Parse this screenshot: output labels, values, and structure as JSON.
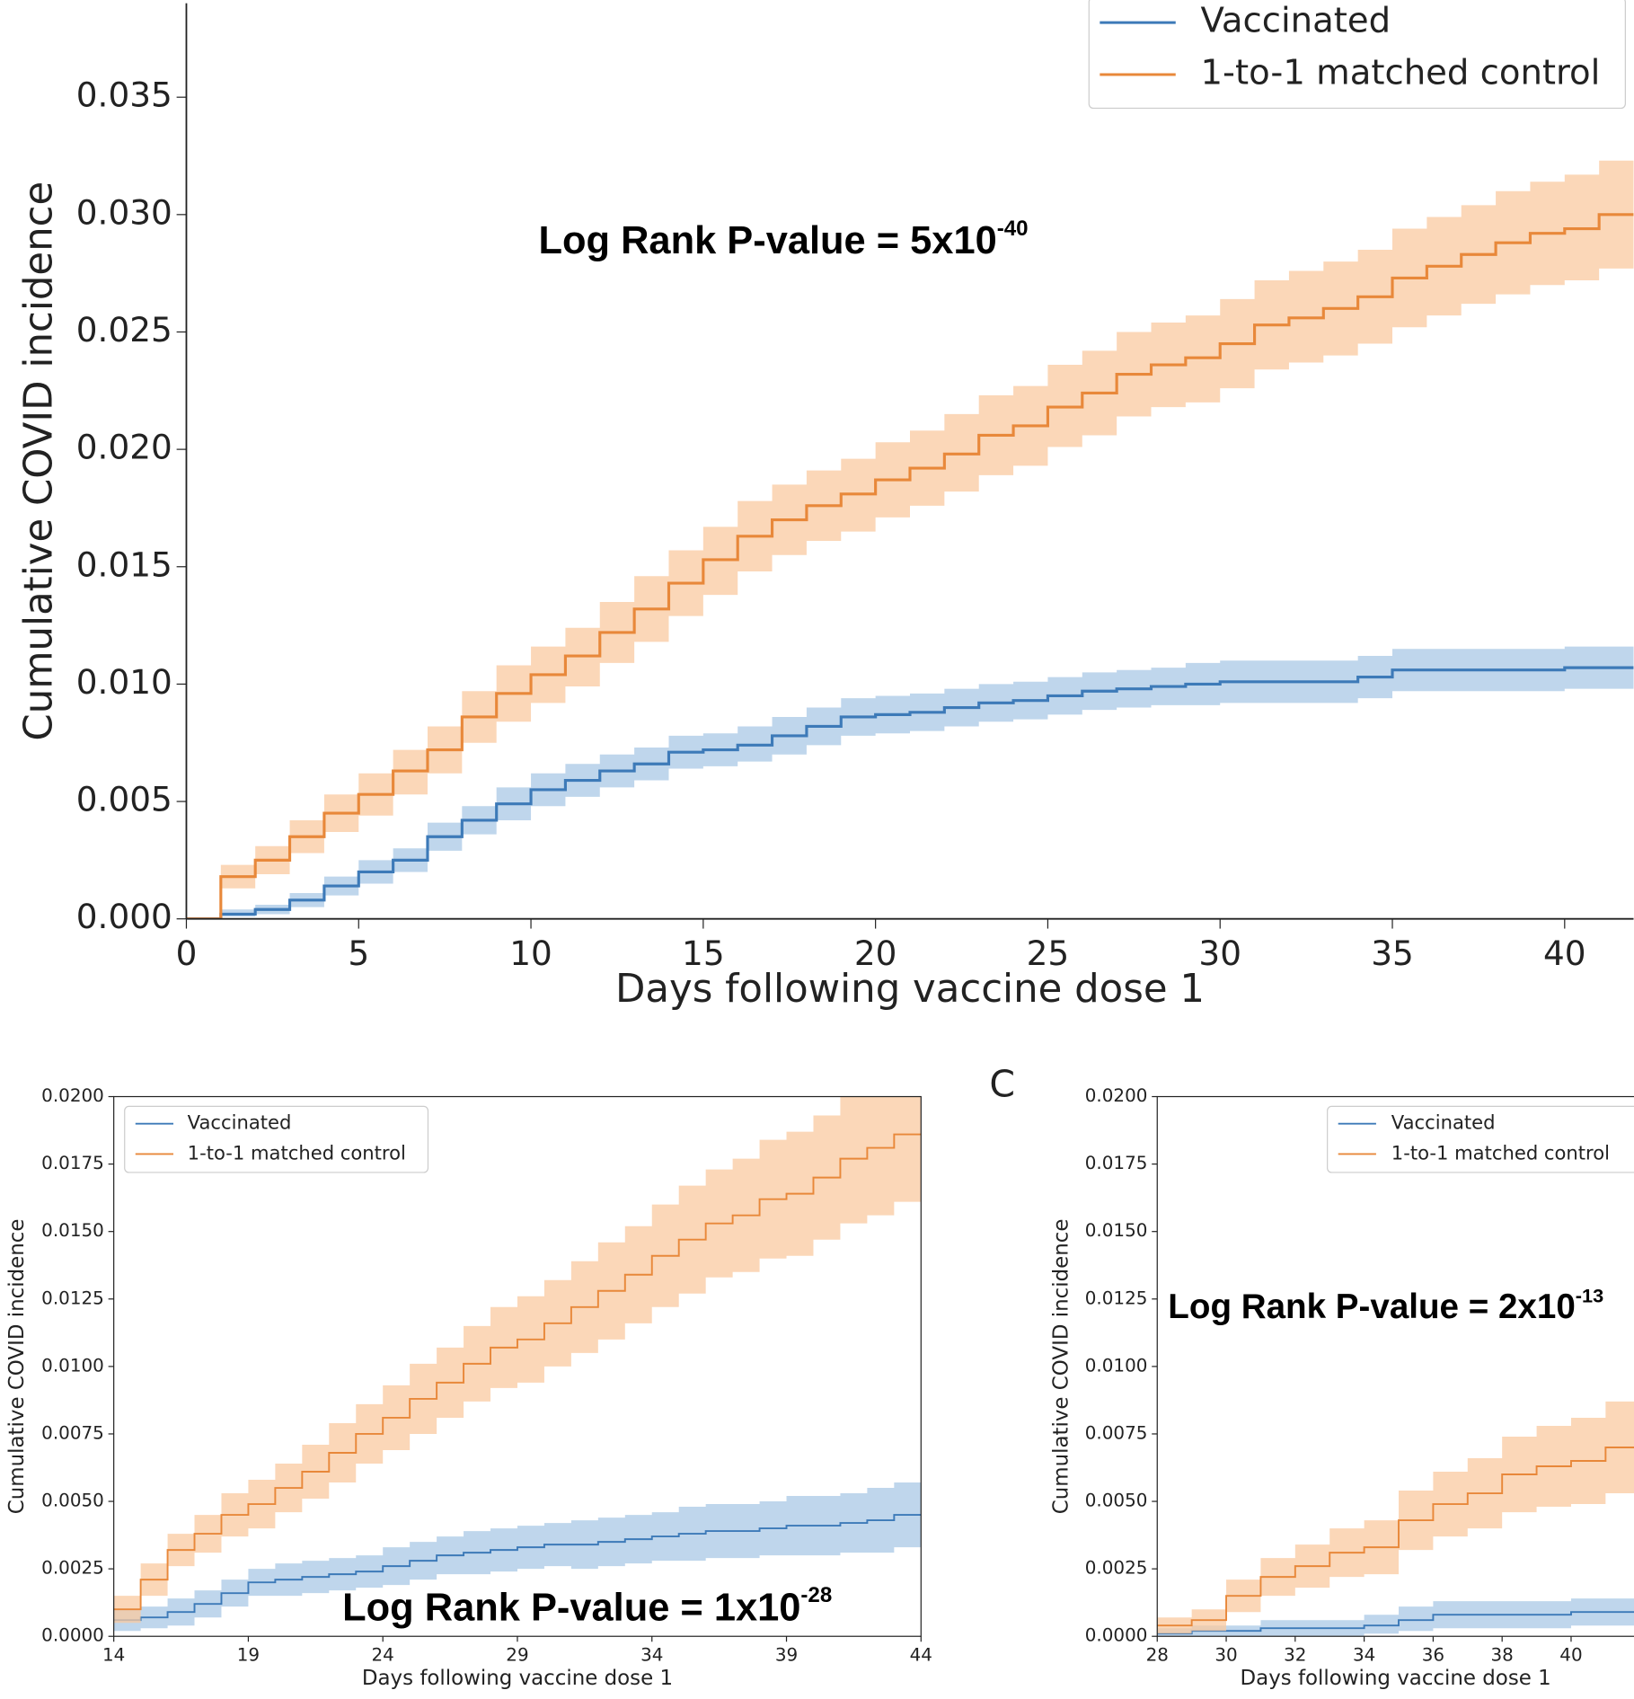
{
  "chart_data": [
    {
      "type": "step",
      "panel": "top",
      "annotation": {
        "text": "Log Rank P-value = 5x10",
        "sup": "-40"
      },
      "x_label": "Days following vaccine dose 1",
      "y_label": "Cumulative COVID incidence",
      "x": [
        0,
        1,
        2,
        3,
        4,
        5,
        6,
        7,
        8,
        9,
        10,
        11,
        12,
        13,
        14,
        15,
        16,
        17,
        18,
        19,
        20,
        21,
        22,
        23,
        24,
        25,
        26,
        27,
        28,
        29,
        30,
        31,
        32,
        33,
        34,
        35,
        36,
        37,
        38,
        39,
        40,
        41,
        42
      ],
      "series": [
        {
          "name": "Vaccinated",
          "color": "#3d7ab8",
          "band_color": "#a9c8e6",
          "values": [
            0,
            0.0002,
            0.0004,
            0.0008,
            0.0014,
            0.002,
            0.0025,
            0.0035,
            0.0042,
            0.0049,
            0.0055,
            0.0059,
            0.0063,
            0.0066,
            0.0071,
            0.0072,
            0.0074,
            0.0078,
            0.0082,
            0.0086,
            0.0087,
            0.0088,
            0.009,
            0.0092,
            0.0093,
            0.0095,
            0.0097,
            0.0098,
            0.0099,
            0.01,
            0.0101,
            0.0101,
            0.0101,
            0.0101,
            0.0103,
            0.0106,
            0.0106,
            0.0106,
            0.0106,
            0.0106,
            0.0107,
            0.0107,
            0.0107
          ],
          "lower": [
            0,
            0.0001,
            0.0002,
            0.0005,
            0.001,
            0.0015,
            0.002,
            0.0029,
            0.0036,
            0.0042,
            0.0048,
            0.0052,
            0.0056,
            0.0059,
            0.0064,
            0.0065,
            0.0067,
            0.007,
            0.0074,
            0.0078,
            0.0079,
            0.008,
            0.0082,
            0.0084,
            0.0085,
            0.0087,
            0.0089,
            0.009,
            0.0091,
            0.0091,
            0.0092,
            0.0092,
            0.0092,
            0.0092,
            0.0094,
            0.0097,
            0.0097,
            0.0097,
            0.0097,
            0.0097,
            0.0098,
            0.0098,
            0.0098
          ],
          "upper": [
            0,
            0.0004,
            0.0006,
            0.0011,
            0.0018,
            0.0025,
            0.003,
            0.0041,
            0.0048,
            0.0056,
            0.0062,
            0.0066,
            0.007,
            0.0073,
            0.0078,
            0.0079,
            0.0082,
            0.0086,
            0.009,
            0.0094,
            0.0095,
            0.0096,
            0.0098,
            0.01,
            0.0101,
            0.0103,
            0.0105,
            0.0106,
            0.0107,
            0.0109,
            0.011,
            0.011,
            0.011,
            0.011,
            0.0112,
            0.0115,
            0.0115,
            0.0115,
            0.0115,
            0.0115,
            0.0116,
            0.0116,
            0.0116
          ]
        },
        {
          "name": "1-to-1 matched control",
          "color": "#e8883a",
          "band_color": "#f9c9a0",
          "values": [
            0,
            0.0018,
            0.0025,
            0.0035,
            0.0045,
            0.0053,
            0.0063,
            0.0072,
            0.0086,
            0.0096,
            0.0104,
            0.0112,
            0.0122,
            0.0132,
            0.0143,
            0.0153,
            0.0163,
            0.017,
            0.0176,
            0.0181,
            0.0187,
            0.0192,
            0.0198,
            0.0206,
            0.021,
            0.0218,
            0.0224,
            0.0232,
            0.0236,
            0.0239,
            0.0245,
            0.0253,
            0.0256,
            0.026,
            0.0265,
            0.0273,
            0.0278,
            0.0283,
            0.0288,
            0.0292,
            0.0294,
            0.03,
            0.03
          ],
          "lower": [
            0,
            0.0013,
            0.0019,
            0.0028,
            0.0037,
            0.0044,
            0.0053,
            0.0062,
            0.0075,
            0.0084,
            0.0092,
            0.0099,
            0.0109,
            0.0118,
            0.0129,
            0.0138,
            0.0148,
            0.0155,
            0.0161,
            0.0165,
            0.0171,
            0.0176,
            0.0182,
            0.0189,
            0.0193,
            0.0201,
            0.0206,
            0.0214,
            0.0218,
            0.022,
            0.0226,
            0.0234,
            0.0237,
            0.024,
            0.0245,
            0.0252,
            0.0257,
            0.0262,
            0.0266,
            0.027,
            0.0272,
            0.0277,
            0.0277
          ],
          "upper": [
            0,
            0.0023,
            0.0031,
            0.0042,
            0.0053,
            0.0062,
            0.0072,
            0.0082,
            0.0097,
            0.0108,
            0.0116,
            0.0124,
            0.0135,
            0.0146,
            0.0157,
            0.0167,
            0.0178,
            0.0185,
            0.0191,
            0.0196,
            0.0203,
            0.0208,
            0.0215,
            0.0223,
            0.0227,
            0.0236,
            0.0242,
            0.025,
            0.0254,
            0.0257,
            0.0264,
            0.0272,
            0.0276,
            0.028,
            0.0285,
            0.0294,
            0.0299,
            0.0304,
            0.031,
            0.0314,
            0.0317,
            0.0323,
            0.0323
          ]
        }
      ],
      "xlim": [
        0,
        42
      ],
      "ylim": [
        0,
        0.039
      ],
      "xticks": [
        0,
        5,
        10,
        15,
        20,
        25,
        30,
        35,
        40
      ],
      "yticks": [
        {
          "value": 0,
          "label": "0.000"
        },
        {
          "value": 0.005,
          "label": "0.005"
        },
        {
          "value": 0.01,
          "label": "0.010"
        },
        {
          "value": 0.015,
          "label": "0.015"
        },
        {
          "value": 0.02,
          "label": "0.020"
        },
        {
          "value": 0.025,
          "label": "0.025"
        },
        {
          "value": 0.03,
          "label": "0.030"
        },
        {
          "value": 0.035,
          "label": "0.035"
        }
      ],
      "legend": "upper right"
    },
    {
      "type": "step",
      "panel": "bottom-left",
      "annotation": {
        "text": "Log Rank P-value = 1x10",
        "sup": "-28"
      },
      "x_label": "Days following vaccine dose 1",
      "y_label": "Cumulative COVID incidence",
      "x": [
        14,
        15,
        16,
        17,
        18,
        19,
        20,
        21,
        22,
        23,
        24,
        25,
        26,
        27,
        28,
        29,
        30,
        31,
        32,
        33,
        34,
        35,
        36,
        37,
        38,
        39,
        40,
        41,
        42,
        43,
        44
      ],
      "series": [
        {
          "name": "Vaccinated",
          "color": "#3d7ab8",
          "band_color": "#a9c8e6",
          "values": [
            0.0006,
            0.0007,
            0.0009,
            0.0012,
            0.0016,
            0.002,
            0.0021,
            0.0022,
            0.0023,
            0.0024,
            0.0026,
            0.0028,
            0.003,
            0.0031,
            0.0032,
            0.0033,
            0.0034,
            0.0034,
            0.0035,
            0.0036,
            0.0037,
            0.0038,
            0.0039,
            0.0039,
            0.004,
            0.0041,
            0.0041,
            0.0042,
            0.0043,
            0.0045,
            0.0045
          ],
          "lower": [
            0.0002,
            0.0003,
            0.0004,
            0.0007,
            0.0011,
            0.0015,
            0.0015,
            0.0016,
            0.0017,
            0.0018,
            0.0019,
            0.0021,
            0.0023,
            0.0023,
            0.0024,
            0.0025,
            0.0026,
            0.0025,
            0.0026,
            0.0027,
            0.0028,
            0.0028,
            0.0029,
            0.0029,
            0.003,
            0.003,
            0.003,
            0.0031,
            0.0031,
            0.0033,
            0.0033
          ],
          "upper": [
            0.001,
            0.0011,
            0.0014,
            0.0017,
            0.0021,
            0.0025,
            0.0027,
            0.0028,
            0.0029,
            0.003,
            0.0033,
            0.0035,
            0.0037,
            0.0039,
            0.004,
            0.0041,
            0.0042,
            0.0043,
            0.0044,
            0.0045,
            0.0046,
            0.0048,
            0.0049,
            0.0049,
            0.005,
            0.0052,
            0.0052,
            0.0053,
            0.0055,
            0.0057,
            0.0057
          ]
        },
        {
          "name": "1-to-1 matched control",
          "color": "#e8883a",
          "band_color": "#f9c9a0",
          "values": [
            0.001,
            0.0021,
            0.0032,
            0.0038,
            0.0045,
            0.0049,
            0.0055,
            0.0061,
            0.0068,
            0.0075,
            0.0081,
            0.0088,
            0.0094,
            0.0101,
            0.0107,
            0.011,
            0.0116,
            0.0122,
            0.0128,
            0.0134,
            0.0141,
            0.0147,
            0.0153,
            0.0156,
            0.0162,
            0.0164,
            0.017,
            0.0177,
            0.0181,
            0.0186,
            0.0186
          ],
          "lower": [
            0.0005,
            0.0015,
            0.0026,
            0.0031,
            0.0037,
            0.004,
            0.0046,
            0.0051,
            0.0057,
            0.0064,
            0.0069,
            0.0075,
            0.0081,
            0.0087,
            0.0092,
            0.0094,
            0.01,
            0.0105,
            0.011,
            0.0116,
            0.0122,
            0.0127,
            0.0133,
            0.0135,
            0.014,
            0.0141,
            0.0147,
            0.0153,
            0.0156,
            0.0161,
            0.0161
          ],
          "upper": [
            0.0015,
            0.0027,
            0.0038,
            0.0045,
            0.0053,
            0.0058,
            0.0064,
            0.0071,
            0.0079,
            0.0086,
            0.0093,
            0.0101,
            0.0107,
            0.0115,
            0.0122,
            0.0126,
            0.0132,
            0.0139,
            0.0146,
            0.0152,
            0.016,
            0.0167,
            0.0173,
            0.0177,
            0.0184,
            0.0187,
            0.0193,
            0.0201,
            0.0206,
            0.0211,
            0.0211
          ]
        }
      ],
      "xlim": [
        14,
        44
      ],
      "ylim": [
        0,
        0.02
      ],
      "xticks": [
        14,
        19,
        24,
        29,
        34,
        39,
        44
      ],
      "yticks": [
        {
          "value": 0,
          "label": "0.0000"
        },
        {
          "value": 0.0025,
          "label": "0.0025"
        },
        {
          "value": 0.005,
          "label": "0.0050"
        },
        {
          "value": 0.0075,
          "label": "0.0075"
        },
        {
          "value": 0.01,
          "label": "0.0100"
        },
        {
          "value": 0.0125,
          "label": "0.0125"
        },
        {
          "value": 0.015,
          "label": "0.0150"
        },
        {
          "value": 0.0175,
          "label": "0.0175"
        },
        {
          "value": 0.02,
          "label": "0.0200"
        }
      ],
      "legend": "upper left"
    },
    {
      "type": "step",
      "panel": "bottom-right",
      "panel_label": "C",
      "annotation": {
        "text": "Log Rank P-value = 2x10",
        "sup": "-13"
      },
      "x_label": "Days following vaccine dose 1",
      "y_label": "Cumulative COVID incidence",
      "x": [
        28,
        29,
        30,
        31,
        32,
        33,
        34,
        35,
        36,
        37,
        38,
        39,
        40,
        41,
        42
      ],
      "series": [
        {
          "name": "Vaccinated",
          "color": "#3d7ab8",
          "band_color": "#a9c8e6",
          "values": [
            0.0001,
            0.0002,
            0.0002,
            0.0003,
            0.0003,
            0.0003,
            0.0004,
            0.0006,
            0.0008,
            0.0008,
            0.0008,
            0.0008,
            0.0009,
            0.0009,
            0.0009
          ],
          "lower": [
            0,
            0,
            0,
            0,
            0,
            0,
            0.0001,
            0.0002,
            0.0003,
            0.0003,
            0.0003,
            0.0003,
            0.0004,
            0.0004,
            0.0004
          ],
          "upper": [
            0.0003,
            0.0004,
            0.0004,
            0.0006,
            0.0006,
            0.0006,
            0.0008,
            0.0011,
            0.0013,
            0.0013,
            0.0013,
            0.0013,
            0.0014,
            0.0014,
            0.0014
          ]
        },
        {
          "name": "1-to-1 matched control",
          "color": "#e8883a",
          "band_color": "#f9c9a0",
          "values": [
            0.0004,
            0.0006,
            0.0015,
            0.0022,
            0.0026,
            0.0031,
            0.0033,
            0.0043,
            0.0049,
            0.0053,
            0.006,
            0.0063,
            0.0065,
            0.007,
            0.007
          ],
          "lower": [
            0.0001,
            0.0002,
            0.0009,
            0.0015,
            0.0018,
            0.0022,
            0.0023,
            0.0032,
            0.0037,
            0.004,
            0.0046,
            0.0048,
            0.0049,
            0.0053,
            0.0053
          ],
          "upper": [
            0.0007,
            0.001,
            0.0021,
            0.0029,
            0.0034,
            0.004,
            0.0043,
            0.0054,
            0.0061,
            0.0066,
            0.0074,
            0.0078,
            0.0081,
            0.0087,
            0.0087
          ]
        }
      ],
      "xlim": [
        28,
        42
      ],
      "ylim": [
        0,
        0.02
      ],
      "xticks": [
        28,
        30,
        32,
        34,
        36,
        38,
        40
      ],
      "yticks": [
        {
          "value": 0,
          "label": "0.0000"
        },
        {
          "value": 0.0025,
          "label": "0.0025"
        },
        {
          "value": 0.005,
          "label": "0.0050"
        },
        {
          "value": 0.0075,
          "label": "0.0075"
        },
        {
          "value": 0.01,
          "label": "0.0100"
        },
        {
          "value": 0.0125,
          "label": "0.0125"
        },
        {
          "value": 0.015,
          "label": "0.0150"
        },
        {
          "value": 0.0175,
          "label": "0.0175"
        },
        {
          "value": 0.02,
          "label": "0.0200"
        }
      ],
      "legend": "upper right"
    }
  ]
}
